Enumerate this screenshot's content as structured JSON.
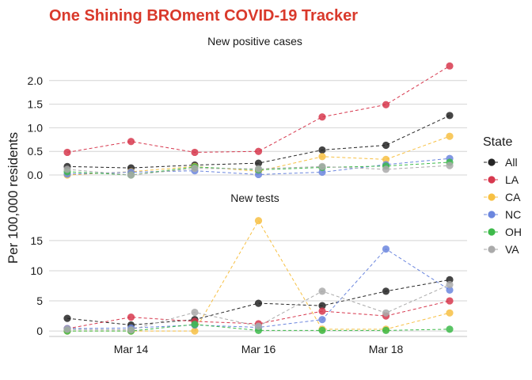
{
  "chart_data": {
    "type": "line",
    "title": "One Shining BROment COVID-19 Tracker",
    "title_color": "#d9392b",
    "ylabel": "Per 100,000 residents",
    "x_tick_labels": [
      "Mar 14",
      "Mar 16",
      "Mar 18"
    ],
    "x_tick_days": [
      14,
      16,
      18
    ],
    "x_days": [
      13,
      14,
      15,
      16,
      17,
      18,
      19
    ],
    "legend": {
      "title": "State",
      "position": "right"
    },
    "states": [
      {
        "name": "All",
        "color": "#252525"
      },
      {
        "name": "LA",
        "color": "#d7384e"
      },
      {
        "name": "CA",
        "color": "#f7c043"
      },
      {
        "name": "NC",
        "color": "#6b86de"
      },
      {
        "name": "OH",
        "color": "#3dba4a"
      },
      {
        "name": "VA",
        "color": "#aaaaaa"
      }
    ],
    "panels": [
      {
        "title": "New positive cases",
        "ylim": [
          -0.15,
          2.5
        ],
        "yticks": [
          0.0,
          0.5,
          1.0,
          1.5,
          2.0
        ],
        "ytick_labels": [
          "0.0",
          "0.5",
          "1.0",
          "1.5",
          "2.0"
        ],
        "series": [
          {
            "name": "All",
            "values": [
              0.18,
              0.15,
              0.21,
              0.25,
              0.53,
              0.63,
              1.26
            ]
          },
          {
            "name": "LA",
            "values": [
              0.48,
              0.71,
              0.48,
              0.5,
              1.23,
              1.49,
              2.31
            ]
          },
          {
            "name": "CA",
            "values": [
              0.0,
              0.07,
              0.18,
              0.08,
              0.39,
              0.33,
              0.82
            ]
          },
          {
            "name": "NC",
            "values": [
              0.02,
              0.06,
              0.09,
              0.01,
              0.06,
              0.22,
              0.35
            ]
          },
          {
            "name": "OH",
            "values": [
              0.07,
              0.0,
              0.17,
              0.11,
              0.16,
              0.19,
              0.27
            ]
          },
          {
            "name": "VA",
            "values": [
              0.12,
              0.0,
              0.14,
              0.13,
              0.18,
              0.12,
              0.2
            ]
          }
        ]
      },
      {
        "title": "New tests",
        "ylim": [
          -0.9,
          20.5
        ],
        "yticks": [
          0,
          5,
          10,
          15
        ],
        "ytick_labels": [
          "0",
          "5",
          "10",
          "15"
        ],
        "series": [
          {
            "name": "All",
            "values": [
              2.1,
              1.0,
              1.9,
              4.6,
              4.2,
              6.6,
              8.5
            ]
          },
          {
            "name": "LA",
            "values": [
              0.4,
              2.3,
              1.6,
              1.2,
              3.3,
              2.5,
              5.0
            ]
          },
          {
            "name": "CA",
            "values": [
              0.0,
              0.0,
              0.0,
              18.3,
              0.3,
              0.3,
              3.0
            ]
          },
          {
            "name": "NC",
            "values": [
              0.4,
              0.5,
              1.0,
              0.6,
              1.9,
              13.6,
              6.8
            ]
          },
          {
            "name": "OH",
            "values": [
              0.0,
              0.0,
              1.1,
              0.1,
              0.1,
              0.1,
              0.3
            ]
          },
          {
            "name": "VA",
            "values": [
              0.3,
              0.2,
              3.1,
              0.8,
              6.6,
              3.0,
              7.7
            ]
          }
        ]
      }
    ]
  }
}
